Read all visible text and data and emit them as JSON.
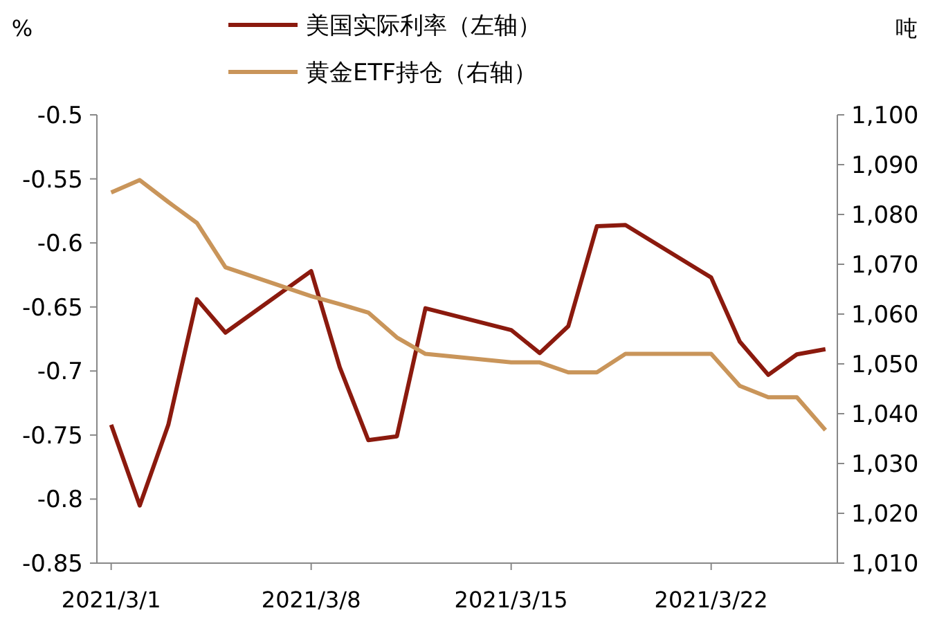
{
  "chart_data": {
    "type": "line",
    "x": [
      "2021-03-01",
      "2021-03-02",
      "2021-03-03",
      "2021-03-04",
      "2021-03-05",
      "2021-03-08",
      "2021-03-09",
      "2021-03-10",
      "2021-03-11",
      "2021-03-12",
      "2021-03-15",
      "2021-03-16",
      "2021-03-17",
      "2021-03-18",
      "2021-03-19",
      "2021-03-22",
      "2021-03-23",
      "2021-03-24",
      "2021-03-25",
      "2021-03-26"
    ],
    "ylabel": "%",
    "y2label": "吨",
    "series": [
      {
        "name": "美国实际利率（左轴）",
        "color": "#8b1a0e",
        "values": [
          -0.742,
          -0.805,
          -0.742,
          -0.644,
          -0.67,
          -0.622,
          -0.697,
          -0.754,
          -0.751,
          -0.651,
          -0.668,
          -0.686,
          -0.665,
          -0.587,
          -0.586,
          -0.627,
          -0.677,
          -0.703,
          -0.687,
          -0.683
        ]
      },
      {
        "name": "黄金ETF持仓（右轴）",
        "color": "#c9955a",
        "axis": "y2",
        "values": [
          1084.4,
          1086.9,
          1082.5,
          1078.3,
          1069.4,
          1063.6,
          1062,
          1060.3,
          1055.3,
          1052,
          1050.3,
          1050.3,
          1048.3,
          1048.3,
          1052,
          1052,
          1045.6,
          1043.3,
          1043.3,
          1036.7
        ]
      }
    ],
    "xlim": [
      "2021-02-28T12:00",
      "2021-03-26T10:00"
    ],
    "xticks": [
      {
        "value": "2021-03-01",
        "label": "2021/3/1"
      },
      {
        "value": "2021-03-08",
        "label": "2021/3/8"
      },
      {
        "value": "2021-03-15",
        "label": "2021/3/15"
      },
      {
        "value": "2021-03-22",
        "label": "2021/3/22"
      }
    ],
    "ylim": [
      -0.85,
      -0.5
    ],
    "yticks": [
      -0.5,
      -0.55,
      -0.6,
      -0.65,
      -0.7,
      -0.75,
      -0.8,
      -0.85
    ],
    "y2lim": [
      1010,
      1100
    ],
    "y2ticks": [
      {
        "value": 1010,
        "label": "1,010"
      },
      {
        "value": 1020,
        "label": "1,020"
      },
      {
        "value": 1030,
        "label": "1,030"
      },
      {
        "value": 1040,
        "label": "1,040"
      },
      {
        "value": 1050,
        "label": "1,050"
      },
      {
        "value": 1060,
        "label": "1,060"
      },
      {
        "value": 1070,
        "label": "1,070"
      },
      {
        "value": 1080,
        "label": "1,080"
      },
      {
        "value": 1090,
        "label": "1,090"
      },
      {
        "value": 1100,
        "label": "1,100"
      }
    ],
    "grid": false,
    "legend": "top",
    "marker": "none",
    "line_style": "solid"
  }
}
